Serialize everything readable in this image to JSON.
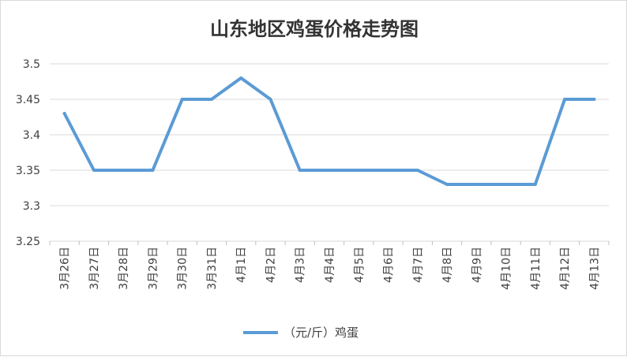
{
  "chart_data": {
    "type": "line",
    "title": "山东地区鸡蛋价格走势图",
    "xlabel": "",
    "ylabel": "",
    "categories": [
      "3月26日",
      "3月27日",
      "3月28日",
      "3月29日",
      "3月30日",
      "3月31日",
      "4月1日",
      "4月2日",
      "4月3日",
      "4月4日",
      "4月5日",
      "4月6日",
      "4月7日",
      "4月8日",
      "4月9日",
      "4月10日",
      "4月11日",
      "4月12日",
      "4月13日"
    ],
    "series": [
      {
        "name": "（元/斤）鸡蛋",
        "color": "#5b9bd5",
        "values": [
          3.43,
          3.35,
          3.35,
          3.35,
          3.45,
          3.45,
          3.48,
          3.45,
          3.35,
          3.35,
          3.35,
          3.35,
          3.35,
          3.33,
          3.33,
          3.33,
          3.33,
          3.45,
          3.45
        ]
      }
    ],
    "ylim": [
      3.25,
      3.5
    ],
    "yticks": [
      "3.25",
      "3.3",
      "3.35",
      "3.4",
      "3.45",
      "3.5"
    ],
    "grid": true,
    "legend_position": "bottom"
  }
}
